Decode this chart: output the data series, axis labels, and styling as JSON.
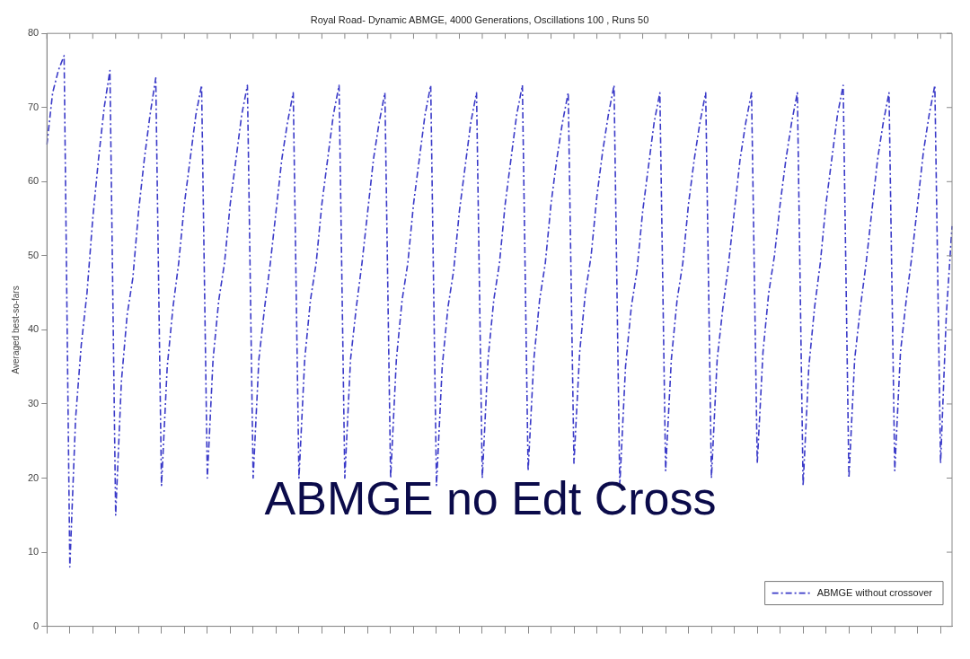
{
  "chart_data": {
    "type": "line",
    "title": "Royal Road- Dynamic ABMGE, 4000 Generations, Oscillations 100 , Runs 50",
    "ylabel": "Averaged best-so-fars",
    "categories": [
      null,
      null,
      null,
      null,
      null,
      null,
      null,
      null,
      null,
      null,
      null,
      null,
      null,
      null,
      null,
      null,
      null,
      null,
      null,
      null,
      null,
      null,
      null,
      null,
      null,
      null,
      null,
      null,
      null,
      null,
      null,
      null,
      null,
      null,
      null,
      null,
      null,
      null,
      null,
      null,
      null,
      null,
      null,
      null,
      null,
      null,
      null,
      null,
      null,
      null,
      null,
      null,
      null,
      null,
      null,
      null,
      null,
      null,
      null,
      null,
      null,
      null,
      null,
      null,
      null,
      null,
      null,
      null,
      null,
      null,
      null,
      null,
      null,
      null,
      null,
      null,
      null,
      null,
      null,
      null,
      null,
      null,
      null,
      null,
      null,
      null,
      null,
      null,
      null,
      null,
      null,
      null,
      null,
      null,
      null,
      null,
      null,
      null,
      null,
      null,
      null,
      null,
      null,
      null,
      null,
      null,
      null,
      null,
      null,
      null,
      null,
      null,
      null,
      null,
      null,
      null,
      null,
      null,
      null,
      null,
      null,
      null,
      null,
      null,
      null,
      null,
      null,
      null,
      null,
      null,
      null,
      null,
      null,
      null,
      null,
      null,
      null,
      null,
      null,
      null,
      null,
      null,
      null,
      null,
      null,
      null,
      null,
      null,
      null,
      null,
      null,
      null,
      null,
      null,
      null,
      null,
      null,
      null,
      null
    ],
    "series": [
      {
        "name": "ABMGE without crossover",
        "color": "#3a3ac8",
        "values": [
          65,
          72,
          75,
          77,
          8,
          28,
          38,
          45,
          55,
          63,
          70,
          75,
          15,
          33,
          42,
          47,
          56,
          63,
          69,
          74,
          19,
          35,
          43,
          49,
          57,
          63,
          69,
          73,
          20,
          36,
          44,
          49,
          57,
          63,
          69,
          73,
          20,
          36,
          43,
          49,
          56,
          63,
          68,
          72,
          20,
          36,
          44,
          49,
          57,
          63,
          69,
          73,
          20,
          36,
          43,
          49,
          56,
          63,
          68,
          72,
          20,
          36,
          44,
          49,
          57,
          63,
          69,
          73,
          19,
          35,
          43,
          48,
          56,
          62,
          68,
          72,
          20,
          36,
          44,
          49,
          57,
          63,
          69,
          73,
          21,
          36,
          44,
          49,
          57,
          63,
          68,
          72,
          22,
          37,
          45,
          50,
          58,
          64,
          69,
          73,
          19,
          35,
          43,
          48,
          56,
          62,
          68,
          72,
          21,
          36,
          44,
          49,
          57,
          63,
          68,
          72,
          20,
          36,
          43,
          49,
          56,
          63,
          68,
          72,
          22,
          37,
          45,
          50,
          57,
          63,
          68,
          72,
          19,
          35,
          43,
          49,
          57,
          63,
          69,
          73,
          20,
          36,
          43,
          49,
          56,
          63,
          68,
          72,
          21,
          37,
          44,
          50,
          57,
          64,
          69,
          73,
          22,
          42,
          54
        ]
      }
    ],
    "ylim": [
      0,
      80
    ],
    "yticks": [
      0,
      10,
      20,
      30,
      40,
      50,
      60,
      70,
      80
    ],
    "grid": false,
    "legend": "bottom right",
    "line_style": "dashed",
    "marker": "none",
    "annotations": [
      "ABMGE no Edt Cross"
    ]
  }
}
